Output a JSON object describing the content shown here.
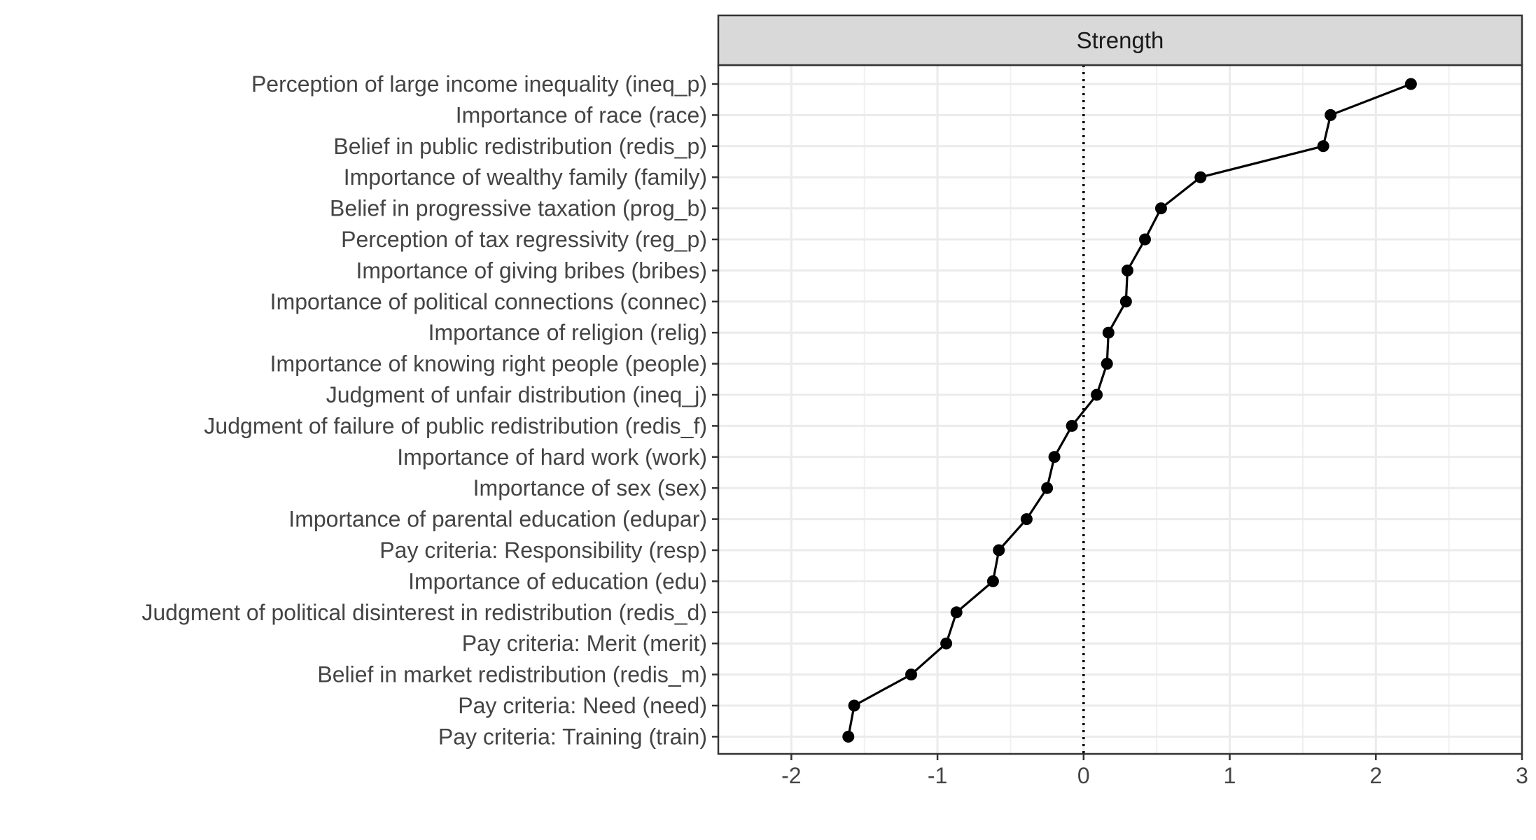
{
  "chart_data": {
    "type": "line",
    "facet": "Strength",
    "xlim": [
      -2.5,
      3.0
    ],
    "x_ticks": [
      -2,
      -1,
      0,
      1,
      2,
      3
    ],
    "x_tick_labels": [
      "-2",
      "-1",
      "0",
      "1",
      "2",
      "3"
    ],
    "reference_line": 0,
    "grid": true,
    "categories": [
      "Perception of large income inequality (ineq_p)",
      "Importance of race (race)",
      "Belief in public redistribution (redis_p)",
      "Importance of wealthy family (family)",
      "Belief in progressive taxation (prog_b)",
      "Perception of tax regressivity (reg_p)",
      "Importance of giving bribes (bribes)",
      "Importance of political connections (connec)",
      "Importance of religion (relig)",
      "Importance of knowing right people (people)",
      "Judgment of unfair distribution (ineq_j)",
      "Judgment of failure of public redistribution (redis_f)",
      "Importance of hard work (work)",
      "Importance of sex (sex)",
      "Importance of parental education (edupar)",
      "Pay criteria: Responsibility (resp)",
      "Importance of education (edu)",
      "Judgment of political disinterest in redistribution (redis_d)",
      "Pay criteria: Merit (merit)",
      "Belief in market redistribution (redis_m)",
      "Pay criteria: Need (need)",
      "Pay criteria: Training (train)"
    ],
    "values": [
      2.24,
      1.69,
      1.64,
      0.8,
      0.53,
      0.42,
      0.3,
      0.29,
      0.17,
      0.16,
      0.09,
      -0.08,
      -0.2,
      -0.25,
      -0.39,
      -0.58,
      -0.62,
      -0.87,
      -0.94,
      -1.18,
      -1.57,
      -1.61
    ]
  }
}
